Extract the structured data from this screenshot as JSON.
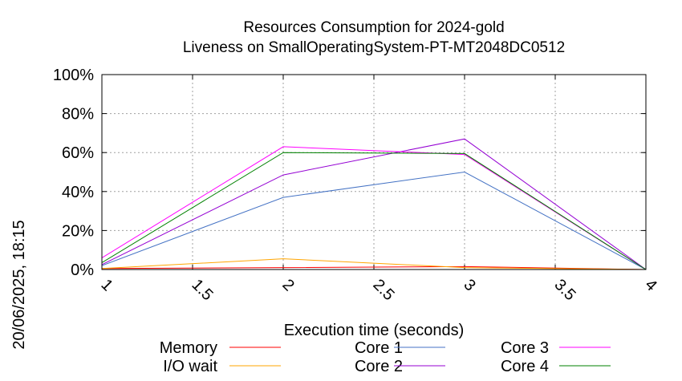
{
  "chart_data": {
    "type": "line",
    "title": "Resources Consumption for 2024-gold",
    "subtitle": "Liveness on SmallOperatingSystem-PT-MT2048DC0512",
    "xlabel": "Execution time (seconds)",
    "ylabel": "",
    "side_label": "20/06/2025, 18:15",
    "x": [
      1,
      2,
      3,
      4
    ],
    "xlim": [
      1,
      4
    ],
    "ylim": [
      0,
      100
    ],
    "x_ticks": [
      "1",
      "1.5",
      "2",
      "2.5",
      "3",
      "3.5",
      "4"
    ],
    "x_tick_values": [
      1,
      1.5,
      2,
      2.5,
      3,
      3.5,
      4
    ],
    "y_ticks": [
      "0%",
      "20%",
      "40%",
      "60%",
      "80%",
      "100%"
    ],
    "y_tick_values": [
      0,
      20,
      40,
      60,
      80,
      100
    ],
    "grid": true,
    "legend_position": "bottom",
    "series": [
      {
        "name": "Memory",
        "color": "#ff0000",
        "values": [
          0.5,
          1,
          1.5,
          0
        ]
      },
      {
        "name": "I/O wait",
        "color": "#ffa500",
        "values": [
          0.5,
          5.5,
          1,
          0
        ]
      },
      {
        "name": "Core 1",
        "color": "#4472c4",
        "values": [
          2,
          37,
          50,
          0
        ]
      },
      {
        "name": "Core 2",
        "color": "#9400d3",
        "values": [
          2.5,
          48.5,
          67,
          0
        ]
      },
      {
        "name": "Core 3",
        "color": "#ff00ff",
        "values": [
          6,
          63,
          59,
          0
        ]
      },
      {
        "name": "Core 4",
        "color": "#008000",
        "values": [
          3.5,
          60,
          59.5,
          0
        ]
      }
    ]
  }
}
